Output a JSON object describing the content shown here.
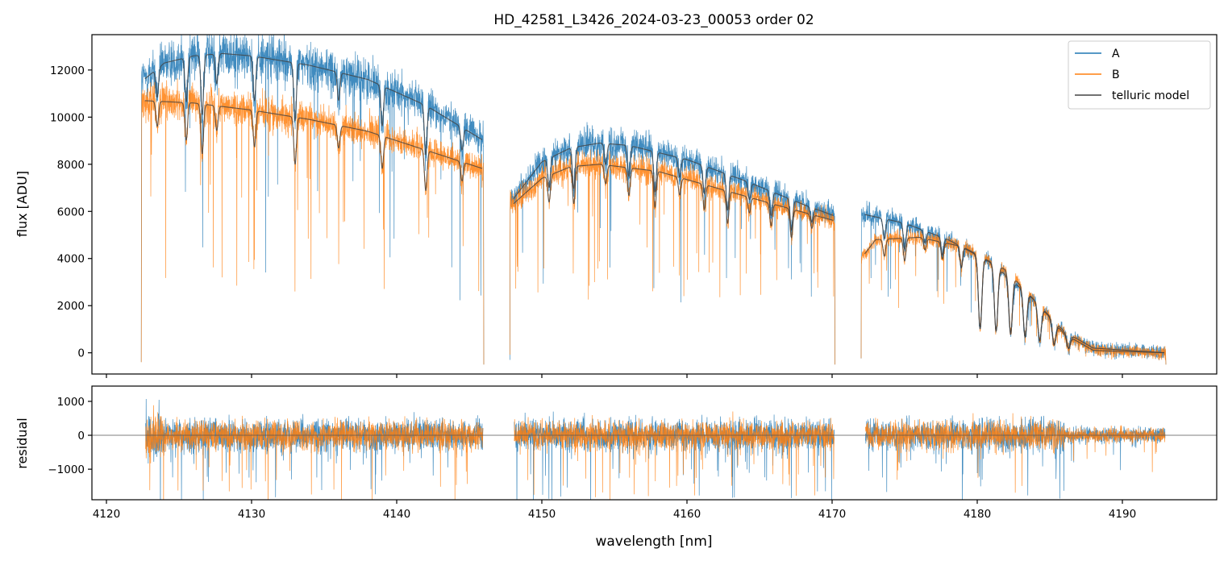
{
  "title": "HD_42581_L3426_2024-03-23_00053  order 02",
  "colors": {
    "A": "#1f77b4",
    "B": "#ff7f0e",
    "telluric": "#444444",
    "zero_line": "#555555"
  },
  "chart_data": [
    {
      "type": "line",
      "panel": "spectrum",
      "xlabel": "wavelength [nm]",
      "ylabel": "flux [ADU]",
      "xlim": [
        4119,
        4196.5
      ],
      "ylim": [
        -900,
        13500
      ],
      "xticks": [
        4120,
        4130,
        4140,
        4150,
        4160,
        4170,
        4180,
        4190
      ],
      "yticks": [
        0,
        2000,
        4000,
        6000,
        8000,
        10000,
        12000
      ],
      "ytick_labels": [
        "0",
        "2000",
        "4000",
        "6000",
        "8000",
        "10000",
        "12000"
      ],
      "legend": {
        "position": "top-right",
        "entries": [
          "A",
          "B",
          "telluric model"
        ]
      },
      "segments": [
        {
          "x_start": 4122.4,
          "x_end": 4146.0
        },
        {
          "x_start": 4147.8,
          "x_end": 4170.2
        },
        {
          "x_start": 4172.0,
          "x_end": 4193.0
        }
      ],
      "series": [
        {
          "name": "A",
          "envelope": [
            [
              4122.6,
              11600
            ],
            [
              4124,
              12300
            ],
            [
              4126,
              12600
            ],
            [
              4128,
              12700
            ],
            [
              4130,
              12600
            ],
            [
              4134,
              12200
            ],
            [
              4138,
              11600
            ],
            [
              4142,
              10500
            ],
            [
              4146,
              9000
            ],
            [
              4148,
              6500
            ],
            [
              4150,
              8100
            ],
            [
              4152,
              8700
            ],
            [
              4154,
              8900
            ],
            [
              4156,
              8800
            ],
            [
              4160,
              8200
            ],
            [
              4164,
              7300
            ],
            [
              4168,
              6300
            ],
            [
              4170.2,
              5800
            ],
            [
              4172,
              5900
            ],
            [
              4175,
              5500
            ],
            [
              4178,
              4800
            ],
            [
              4181,
              3800
            ],
            [
              4184,
              2200
            ],
            [
              4186,
              900
            ],
            [
              4188,
              200
            ],
            [
              4193,
              0
            ]
          ]
        },
        {
          "name": "B",
          "envelope": [
            [
              4122.6,
              10700
            ],
            [
              4126,
              10600
            ],
            [
              4130,
              10300
            ],
            [
              4134,
              9900
            ],
            [
              4138,
              9400
            ],
            [
              4142,
              8600
            ],
            [
              4146,
              7800
            ],
            [
              4148,
              6300
            ],
            [
              4150,
              7400
            ],
            [
              4152,
              7900
            ],
            [
              4154,
              8000
            ],
            [
              4158,
              7700
            ],
            [
              4162,
              7000
            ],
            [
              4166,
              6300
            ],
            [
              4170.2,
              5600
            ],
            [
              4172,
              4000
            ],
            [
              4173,
              4800
            ],
            [
              4176,
              4900
            ],
            [
              4179,
              4500
            ],
            [
              4182,
              3500
            ],
            [
              4184,
              2200
            ],
            [
              4186,
              800
            ],
            [
              4188,
              100
            ],
            [
              4193,
              0
            ]
          ]
        },
        {
          "name": "telluric model",
          "lines": [
            4123.5,
            4125.5,
            4126.6,
            4127.6,
            4130.2,
            4133.0,
            4136.0,
            4139.0,
            4142.0,
            4144.5,
            4150.5,
            4152.2,
            4154.4,
            4156.0,
            4157.8,
            4159.5,
            4161.2,
            4162.8,
            4164.3,
            4165.8,
            4167.2,
            4168.6,
            4173.6,
            4175.0,
            4176.4,
            4177.6,
            4178.9,
            4180.2,
            4181.3,
            4182.3,
            4183.3,
            4184.3,
            4185.3,
            4186.3
          ]
        }
      ]
    },
    {
      "type": "line",
      "panel": "residual",
      "xlabel": "wavelength [nm]",
      "ylabel": "residual",
      "xlim": [
        4119,
        4196.5
      ],
      "ylim": [
        -1900,
        1450
      ],
      "xticks": [
        4120,
        4130,
        4140,
        4150,
        4160,
        4170,
        4180,
        4190
      ],
      "xtick_labels": [
        "4120",
        "4130",
        "4140",
        "4150",
        "4160",
        "4170",
        "4180",
        "4190"
      ],
      "yticks": [
        -1000,
        0,
        1000
      ],
      "ytick_labels": [
        "−1000",
        "0",
        "1000"
      ],
      "reference_line": 0,
      "series": [
        {
          "name": "A",
          "typical_amplitude": 600
        },
        {
          "name": "B",
          "typical_amplitude": 550
        }
      ]
    }
  ]
}
